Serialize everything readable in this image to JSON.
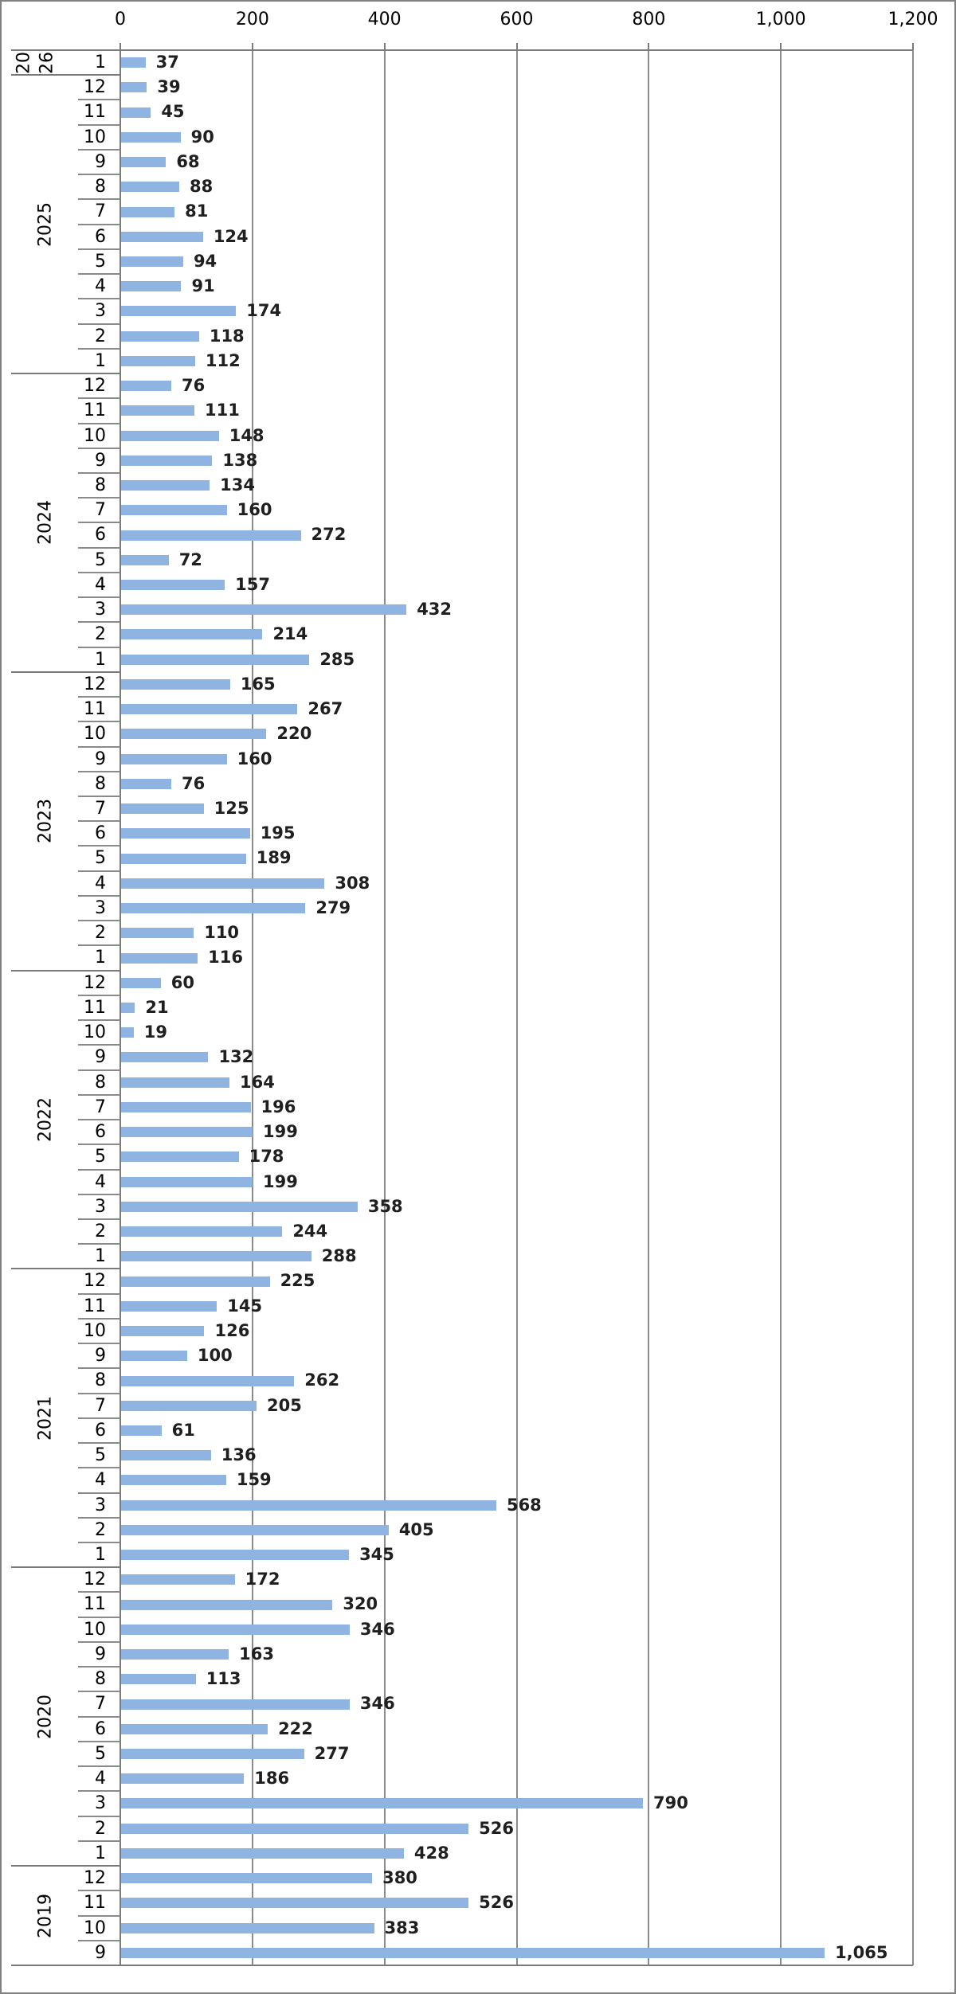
{
  "chart_data": {
    "type": "bar",
    "orientation": "horizontal",
    "title": "",
    "value_axis": {
      "position": "top",
      "tick_labels": [
        "0",
        "200",
        "400",
        "600",
        "800",
        "1,000",
        "1,200"
      ],
      "tick_values": [
        0,
        200,
        400,
        600,
        800,
        1000,
        1200
      ],
      "min": 0,
      "max": 1200,
      "gridlines": true
    },
    "category_axis": {
      "levels": [
        "year",
        "month"
      ],
      "order": "newest-at-top",
      "year_2026_wrapped_label": [
        "20",
        "26"
      ]
    },
    "data_labels": {
      "visible": true,
      "bold": true,
      "number_format": "#,##0"
    },
    "groups": [
      {
        "year": "2026",
        "months": [
          "1"
        ],
        "values": [
          37
        ]
      },
      {
        "year": "2025",
        "months": [
          "12",
          "11",
          "10",
          "9",
          "8",
          "7",
          "6",
          "5",
          "4",
          "3",
          "2",
          "1"
        ],
        "values": [
          39,
          45,
          90,
          68,
          88,
          81,
          124,
          94,
          91,
          174,
          118,
          112
        ]
      },
      {
        "year": "2024",
        "months": [
          "12",
          "11",
          "10",
          "9",
          "8",
          "7",
          "6",
          "5",
          "4",
          "3",
          "2",
          "1"
        ],
        "values": [
          76,
          111,
          148,
          138,
          134,
          160,
          272,
          72,
          157,
          432,
          214,
          285
        ]
      },
      {
        "year": "2023",
        "months": [
          "12",
          "11",
          "10",
          "9",
          "8",
          "7",
          "6",
          "5",
          "4",
          "3",
          "2",
          "1"
        ],
        "values": [
          165,
          267,
          220,
          160,
          76,
          125,
          195,
          189,
          308,
          279,
          110,
          116
        ]
      },
      {
        "year": "2022",
        "months": [
          "12",
          "11",
          "10",
          "9",
          "8",
          "7",
          "6",
          "5",
          "4",
          "3",
          "2",
          "1"
        ],
        "values": [
          60,
          21,
          19,
          132,
          164,
          196,
          199,
          178,
          199,
          358,
          244,
          288
        ]
      },
      {
        "year": "2021",
        "months": [
          "12",
          "11",
          "10",
          "9",
          "8",
          "7",
          "6",
          "5",
          "4",
          "3",
          "2",
          "1"
        ],
        "values": [
          225,
          145,
          126,
          100,
          262,
          205,
          61,
          136,
          159,
          568,
          405,
          345
        ]
      },
      {
        "year": "2020",
        "months": [
          "12",
          "11",
          "10",
          "9",
          "8",
          "7",
          "6",
          "5",
          "4",
          "3",
          "2",
          "1"
        ],
        "values": [
          172,
          320,
          346,
          163,
          113,
          346,
          222,
          277,
          186,
          790,
          526,
          428
        ]
      },
      {
        "year": "2019",
        "months": [
          "12",
          "11",
          "10",
          "9"
        ],
        "values": [
          380,
          526,
          383,
          1065
        ]
      }
    ],
    "colors": {
      "bar": "#8FB4E1",
      "axis_line": "#7a7a7a",
      "gridline": "#8a8a8a",
      "data_label": "#1f1f1f",
      "text": "#000000",
      "background": "#ffffff",
      "chart_border": "#808080"
    }
  }
}
